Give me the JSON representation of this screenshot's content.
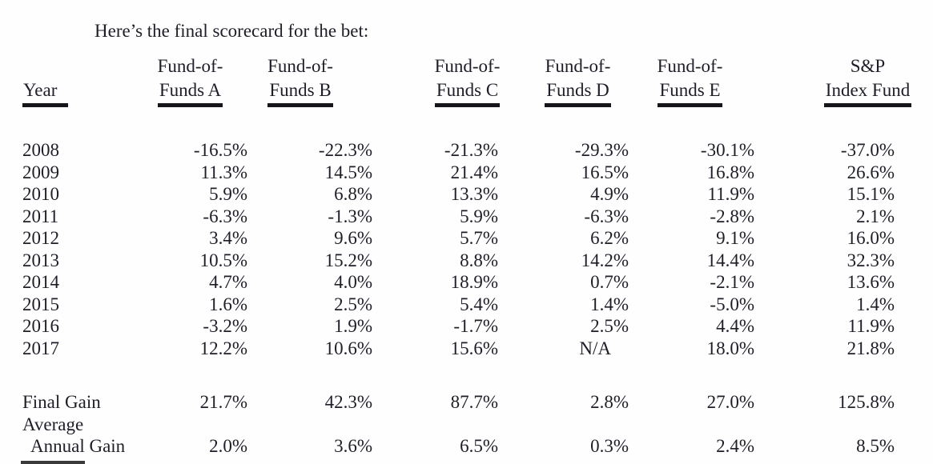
{
  "title": "Here’s the final scorecard for the bet:",
  "table": {
    "columns": [
      {
        "label1": "",
        "label2": "Year"
      },
      {
        "label1": "Fund-of-",
        "label2": "Funds A"
      },
      {
        "label1": "Fund-of-",
        "label2": "Funds B"
      },
      {
        "label1": "Fund-of-",
        "label2": "Funds C"
      },
      {
        "label1": "Fund-of-",
        "label2": "Funds D"
      },
      {
        "label1": "Fund-of-",
        "label2": "Funds E"
      },
      {
        "label1": "S&P",
        "label2": "Index Fund"
      }
    ],
    "rows": [
      {
        "label": "2008",
        "values": [
          "-16.5%",
          "-22.3%",
          "-21.3%",
          "-29.3%",
          "-30.1%",
          "-37.0%"
        ]
      },
      {
        "label": "2009",
        "values": [
          "11.3%",
          "14.5%",
          "21.4%",
          "16.5%",
          "16.8%",
          "26.6%"
        ]
      },
      {
        "label": "2010",
        "values": [
          "5.9%",
          "6.8%",
          "13.3%",
          "4.9%",
          "11.9%",
          "15.1%"
        ]
      },
      {
        "label": "2011",
        "values": [
          "-6.3%",
          "-1.3%",
          "5.9%",
          "-6.3%",
          "-2.8%",
          "2.1%"
        ]
      },
      {
        "label": "2012",
        "values": [
          "3.4%",
          "9.6%",
          "5.7%",
          "6.2%",
          "9.1%",
          "16.0%"
        ]
      },
      {
        "label": "2013",
        "values": [
          "10.5%",
          "15.2%",
          "8.8%",
          "14.2%",
          "14.4%",
          "32.3%"
        ]
      },
      {
        "label": "2014",
        "values": [
          "4.7%",
          "4.0%",
          "18.9%",
          "0.7%",
          "-2.1%",
          "13.6%"
        ]
      },
      {
        "label": "2015",
        "values": [
          "1.6%",
          "2.5%",
          "5.4%",
          "1.4%",
          "-5.0%",
          "1.4%"
        ]
      },
      {
        "label": "2016",
        "values": [
          "-3.2%",
          "1.9%",
          "-1.7%",
          "2.5%",
          "4.4%",
          "11.9%"
        ]
      },
      {
        "label": "2017",
        "values": [
          "12.2%",
          "10.6%",
          "15.6%",
          "N/A",
          "18.0%",
          "21.8%"
        ]
      }
    ],
    "summary_rows": [
      {
        "label": "Final Gain",
        "indent": false,
        "values": [
          "21.7%",
          "42.3%",
          "87.7%",
          "2.8%",
          "27.0%",
          "125.8%"
        ]
      },
      {
        "label": "Average",
        "indent": false,
        "values": []
      },
      {
        "label": "Annual Gain",
        "indent": true,
        "values": [
          "2.0%",
          "3.6%",
          "6.5%",
          "0.3%",
          "2.4%",
          "8.5%"
        ]
      }
    ]
  }
}
